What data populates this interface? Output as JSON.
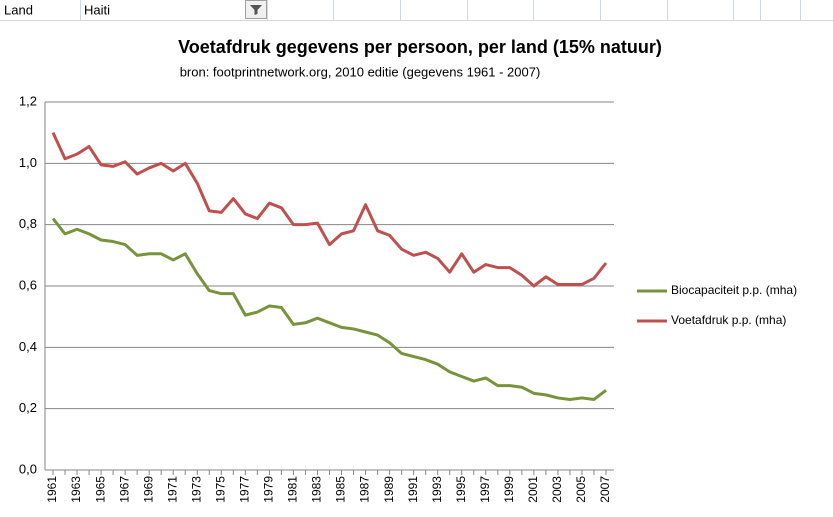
{
  "filter": {
    "field": "Land",
    "value": "Haiti"
  },
  "chart_data": {
    "type": "line",
    "title": "Voetafdruk gegevens per persoon, per land (15% natuur)",
    "subtitle": "bron: footprintnetwork.org, 2010 editie (gegevens 1961 - 2007)",
    "categories": [
      "1961",
      null,
      "1963",
      null,
      "1965",
      null,
      "1967",
      null,
      "1969",
      null,
      "1971",
      null,
      "1973",
      null,
      "1975",
      null,
      "1977",
      null,
      "1979",
      null,
      "1981",
      null,
      "1983",
      null,
      "1985",
      null,
      "1987",
      null,
      "1989",
      null,
      "1991",
      null,
      "1993",
      null,
      "1995",
      null,
      "1997",
      null,
      "1999",
      null,
      "2001",
      null,
      "2003",
      null,
      "2005",
      null,
      "2007"
    ],
    "series": [
      {
        "name": "Biocapaciteit p.p. (mha)",
        "color": "#77933c",
        "values": [
          0.82,
          0.77,
          0.785,
          0.77,
          0.75,
          0.745,
          0.735,
          0.7,
          0.705,
          0.705,
          0.685,
          0.705,
          0.64,
          0.585,
          0.575,
          0.575,
          0.505,
          0.515,
          0.535,
          0.53,
          0.475,
          0.48,
          0.495,
          0.48,
          0.465,
          0.46,
          0.45,
          0.44,
          0.415,
          0.38,
          0.37,
          0.36,
          0.345,
          0.32,
          0.305,
          0.29,
          0.3,
          0.275,
          0.275,
          0.27,
          0.25,
          0.245,
          0.235,
          0.23,
          0.235,
          0.23,
          0.26
        ]
      },
      {
        "name": "Voetafdruk p.p. (mha)",
        "color": "#c0504d",
        "values": [
          1.1,
          1.015,
          1.03,
          1.055,
          0.995,
          0.99,
          1.005,
          0.965,
          0.985,
          1.0,
          0.975,
          1.0,
          0.935,
          0.845,
          0.84,
          0.885,
          0.835,
          0.82,
          0.87,
          0.855,
          0.8,
          0.8,
          0.805,
          0.735,
          0.77,
          0.78,
          0.865,
          0.78,
          0.765,
          0.72,
          0.7,
          0.71,
          0.69,
          0.645,
          0.705,
          0.645,
          0.67,
          0.66,
          0.66,
          0.635,
          0.6,
          0.63,
          0.605,
          0.605,
          0.605,
          0.625,
          0.675
        ]
      }
    ],
    "ylim": [
      0,
      1.2
    ],
    "yticks": [
      {
        "value": 0,
        "label": "0,0"
      },
      {
        "value": 0.2,
        "label": "0,2"
      },
      {
        "value": 0.4,
        "label": "0,4"
      },
      {
        "value": 0.6,
        "label": "0,6"
      },
      {
        "value": 0.8,
        "label": "0,8"
      },
      {
        "value": 1.0,
        "label": "1,0"
      },
      {
        "value": 1.2,
        "label": "1,2"
      }
    ],
    "grid": true,
    "legend": "right"
  }
}
